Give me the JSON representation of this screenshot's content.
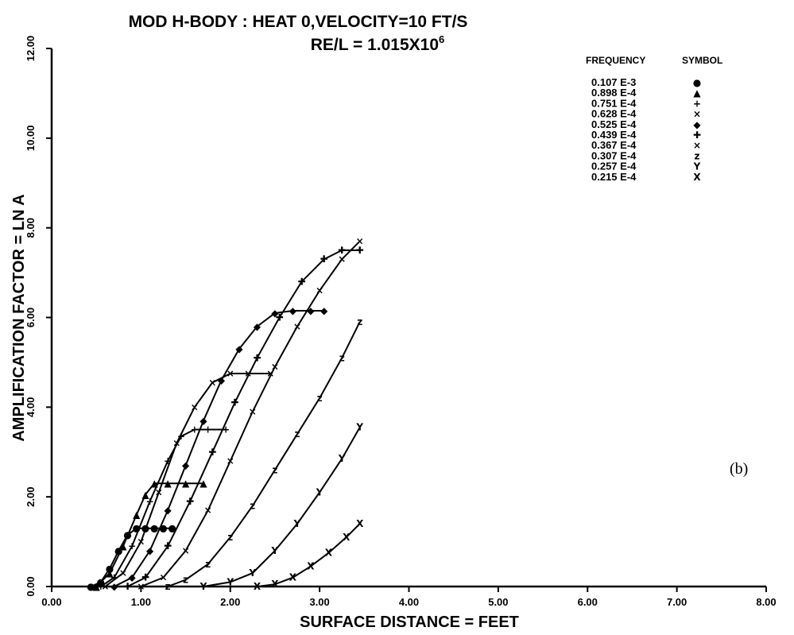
{
  "chart_data": {
    "type": "line",
    "title": "MOD H-BODY : HEAT 0,VELOCITY=10 FT/S",
    "subtitle_base": "RE/L = 1.015X10",
    "subtitle_exp": "6",
    "xlabel": "SURFACE DISTANCE = FEET",
    "ylabel": "AMPLIFICATION FACTOR = LN A",
    "xlim": [
      0,
      8
    ],
    "ylim": [
      0,
      12
    ],
    "x_ticks": [
      "0.00",
      "1.00",
      "2.00",
      "3.00",
      "4.00",
      "5.00",
      "6.00",
      "7.00",
      "8.00"
    ],
    "y_ticks": [
      "0.00",
      "2.00",
      "4.00",
      "6.00",
      "8.00",
      "10.00",
      "12.00"
    ],
    "grid": false,
    "legend_position": "top-right",
    "legend_header_left": "FREQUENCY",
    "legend_header_right": "SYMBOL",
    "panel_label": "(b)",
    "series": [
      {
        "name": "0.107 E-3",
        "symbol": "●",
        "x": [
          0.44,
          0.55,
          0.65,
          0.75,
          0.85,
          0.95,
          1.05,
          1.15,
          1.25,
          1.35
        ],
        "y": [
          0.0,
          0.1,
          0.4,
          0.8,
          1.15,
          1.3,
          1.3,
          1.3,
          1.3,
          1.3
        ]
      },
      {
        "name": "0.898 E-4",
        "symbol": "▲",
        "x": [
          0.5,
          0.65,
          0.8,
          0.95,
          1.05,
          1.15,
          1.3,
          1.5,
          1.7
        ],
        "y": [
          0.0,
          0.3,
          0.9,
          1.6,
          2.05,
          2.3,
          2.3,
          2.3,
          2.3
        ]
      },
      {
        "name": "0.751 E-4",
        "symbol": "+",
        "x": [
          0.55,
          0.7,
          0.9,
          1.1,
          1.3,
          1.45,
          1.6,
          1.75,
          1.95
        ],
        "y": [
          0.0,
          0.2,
          0.9,
          1.9,
          2.8,
          3.35,
          3.5,
          3.5,
          3.5
        ]
      },
      {
        "name": "0.628 E-4",
        "symbol": "×",
        "x": [
          0.6,
          0.8,
          1.0,
          1.2,
          1.4,
          1.6,
          1.8,
          2.0,
          2.2,
          2.45
        ],
        "y": [
          0.0,
          0.3,
          1.0,
          2.1,
          3.2,
          4.0,
          4.55,
          4.75,
          4.75,
          4.75
        ]
      },
      {
        "name": "0.525 E-4",
        "symbol": "◆",
        "x": [
          0.7,
          0.9,
          1.1,
          1.3,
          1.5,
          1.7,
          1.9,
          2.1,
          2.3,
          2.5,
          2.7,
          2.9,
          3.05
        ],
        "y": [
          0.0,
          0.2,
          0.8,
          1.7,
          2.7,
          3.7,
          4.6,
          5.3,
          5.8,
          6.1,
          6.15,
          6.15,
          6.15
        ]
      },
      {
        "name": "0.439 E-4",
        "symbol": "✚",
        "x": [
          0.85,
          1.05,
          1.3,
          1.55,
          1.8,
          2.05,
          2.3,
          2.55,
          2.8,
          3.05,
          3.25,
          3.45
        ],
        "y": [
          0.0,
          0.2,
          0.9,
          1.9,
          3.0,
          4.1,
          5.1,
          6.0,
          6.8,
          7.3,
          7.5,
          7.5
        ]
      },
      {
        "name": "0.367 E-4",
        "symbol": "×",
        "x": [
          1.0,
          1.25,
          1.5,
          1.75,
          2.0,
          2.25,
          2.5,
          2.75,
          3.0,
          3.25,
          3.45
        ],
        "y": [
          0.0,
          0.2,
          0.8,
          1.7,
          2.8,
          3.9,
          4.9,
          5.8,
          6.6,
          7.3,
          7.7
        ]
      },
      {
        "name": "0.307 E-4",
        "symbol": "z",
        "x": [
          1.3,
          1.5,
          1.75,
          2.0,
          2.25,
          2.5,
          2.75,
          3.0,
          3.25,
          3.45
        ],
        "y": [
          0.0,
          0.15,
          0.5,
          1.1,
          1.8,
          2.6,
          3.4,
          4.2,
          5.1,
          5.9
        ]
      },
      {
        "name": "0.257 E-4",
        "symbol": "Y",
        "x": [
          1.7,
          2.0,
          2.25,
          2.5,
          2.75,
          3.0,
          3.25,
          3.45
        ],
        "y": [
          0.0,
          0.1,
          0.3,
          0.8,
          1.4,
          2.1,
          2.85,
          3.55
        ]
      },
      {
        "name": "0.215 E-4",
        "symbol": "X",
        "x": [
          2.3,
          2.5,
          2.7,
          2.9,
          3.1,
          3.3,
          3.45
        ],
        "y": [
          0.0,
          0.05,
          0.2,
          0.45,
          0.75,
          1.1,
          1.4
        ]
      }
    ]
  }
}
